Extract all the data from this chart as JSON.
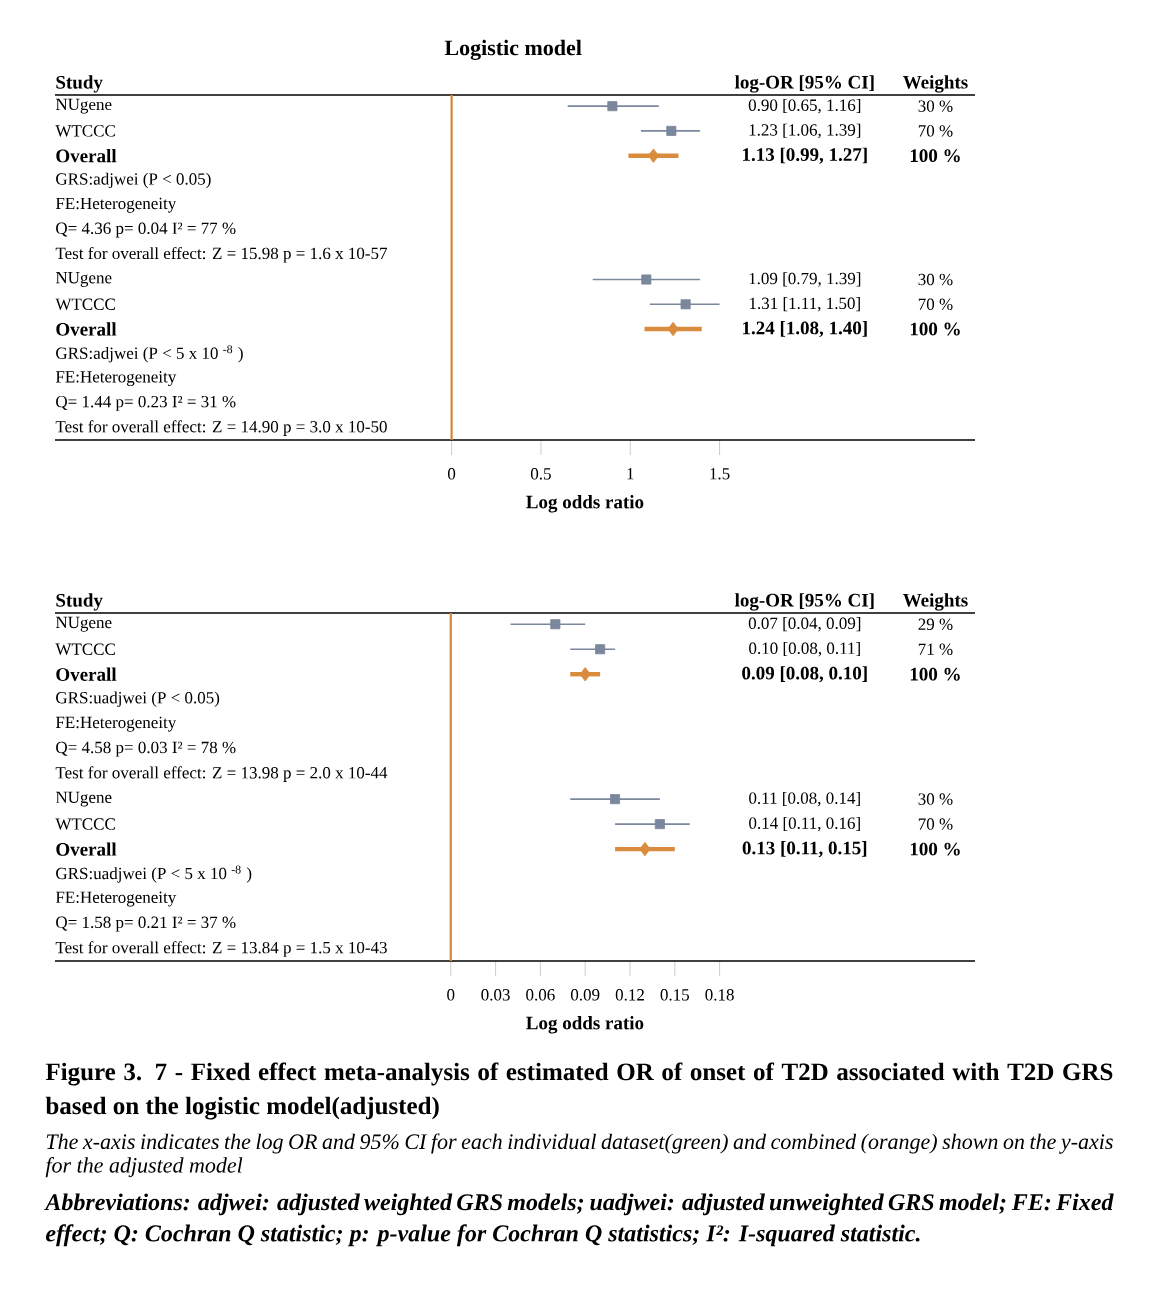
{
  "chart_data": [
    {
      "type": "scatter",
      "orientation": "horizontal",
      "title": "Logistic model",
      "xlabel": "Log odds ratio",
      "ylabel": "Study",
      "categories": [
        "NUgene",
        "WTCCC",
        "Overall",
        "GRS:adjwei (P < 0.05)",
        "FE:Heterogeneity",
        "Q= 4.36 p= 0.04 I² =  77 %",
        "Test for overall effect: Z = 15.98 p = 1.6 x 10-57",
        "NUgene",
        "WTCCC",
        "Overall",
        "GRS:adjwei (P < 5 x 10 $^{-8}$ )",
        "FE:Heterogeneity",
        "Q= 1.44 p= 0.23 I² =  31 %",
        "Test for overall effect: Z = 14.90 p = 3.0 x 10-50"
      ],
      "series": [
        {
          "color": "#7b879c",
          "marker": "square",
          "values": [
            0.9,
            1.23,
            null,
            null,
            null,
            null,
            null,
            1.09,
            1.31,
            null,
            null,
            null,
            null,
            null
          ],
          "errors": [
            [
              0.65,
              1.16
            ],
            [
              1.06,
              1.39
            ],
            null,
            null,
            null,
            null,
            null,
            [
              0.79,
              1.39
            ],
            [
              1.11,
              1.5
            ],
            null,
            null,
            null,
            null,
            null
          ]
        },
        {
          "color": "#d98b3e",
          "marker": "diamond",
          "values": [
            null,
            null,
            1.13,
            null,
            null,
            null,
            null,
            null,
            null,
            1.24,
            null,
            null,
            null,
            null
          ],
          "errors": [
            null,
            null,
            [
              0.99,
              1.27
            ],
            null,
            null,
            null,
            null,
            null,
            null,
            [
              1.08,
              1.4
            ],
            null,
            null,
            null,
            null
          ]
        }
      ],
      "xlim": [
        -2.22,
        2.93
      ],
      "xticks": [
        0,
        0.5,
        1,
        1.5
      ],
      "ref_lines": [
        {
          "axis": "x",
          "value": 0,
          "color": "#d2873c"
        }
      ],
      "annotations": [
        "log-OR [95% CI]",
        "Weights",
        "0.90 [0.65, 1.16]",
        "30 %",
        "1.23 [1.06, 1.39]",
        "70 %",
        "1.13 [0.99, 1.27]",
        "100 %",
        "1.09 [0.79, 1.39]",
        "30 %",
        "1.31 [1.11, 1.50]",
        "70 %",
        "1.24 [1.08, 1.40]",
        "100 %"
      ]
    },
    {
      "type": "scatter",
      "orientation": "horizontal",
      "xlabel": "Log odds ratio",
      "ylabel": "Study",
      "categories": [
        "NUgene",
        "WTCCC",
        "Overall",
        "GRS:uadjwei (P < 0.05)",
        "FE:Heterogeneity",
        "Q= 4.58 p= 0.03 I² =  78 %",
        "Test for overall effect: Z = 13.98 p = 2.0 x 10-44",
        "NUgene",
        "WTCCC",
        "Overall",
        "GRS:uadjwei (P < 5 x 10 $^{-8}$ )",
        "FE:Heterogeneity",
        "Q= 1.58 p= 0.21 I² =  37 %",
        "Test for overall effect: Z = 13.84 p = 1.5 x 10-43"
      ],
      "series": [
        {
          "color": "#7b879c",
          "marker": "square",
          "values": [
            0.07,
            0.1,
            null,
            null,
            null,
            null,
            null,
            0.11,
            0.14,
            null,
            null,
            null,
            null,
            null
          ],
          "errors": [
            [
              0.04,
              0.09
            ],
            [
              0.08,
              0.11
            ],
            null,
            null,
            null,
            null,
            null,
            [
              0.08,
              0.14
            ],
            [
              0.11,
              0.16
            ],
            null,
            null,
            null,
            null,
            null
          ]
        },
        {
          "color": "#d98b3e",
          "marker": "diamond",
          "values": [
            null,
            null,
            0.09,
            null,
            null,
            null,
            null,
            null,
            null,
            0.13,
            null,
            null,
            null,
            null
          ],
          "errors": [
            null,
            null,
            [
              0.08,
              0.1
            ],
            null,
            null,
            null,
            null,
            null,
            null,
            [
              0.11,
              0.15
            ],
            null,
            null,
            null,
            null
          ]
        }
      ],
      "xlim": [
        -0.265,
        0.351
      ],
      "xticks": [
        0,
        0.03,
        0.06,
        0.09,
        0.12,
        0.15,
        0.18
      ],
      "ref_lines": [
        {
          "axis": "x",
          "value": 0,
          "color": "#d2873c"
        }
      ],
      "annotations": [
        "log-OR [95% CI]",
        "Weights",
        "0.07 [0.04, 0.09]",
        "29 %",
        "0.10 [0.08, 0.11]",
        "71 %",
        "0.09 [0.08, 0.10]",
        "100 %",
        "0.11 [0.08, 0.14]",
        "30 %",
        "0.14 [0.11, 0.16]",
        "70 %",
        "0.13 [0.11, 0.15]",
        "100 %",
        "Figure 3. 7 - Fixed effect meta-analysis of estimated OR of  onset of T2D associated with T2D GRS based on the logistic model(adjusted)",
        "The x-axis indicates the log OR and 95% CI for each individual dataset(green) and combined (orange) shown on the y-axis for the adjusted model",
        "Abbreviations:  adjwei: adjusted weighted GRS models; uadjwei: adjusted unweighted GRS model; FE: Fixed effect; Q: Cochran Q statistic; p: p-value for Cochran Q statistics; I²: I-squared statistic."
      ]
    }
  ]
}
